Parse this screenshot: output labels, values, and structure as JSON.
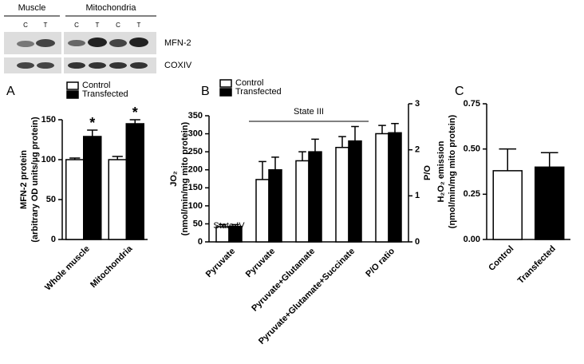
{
  "blot": {
    "groups": [
      "Muscle",
      "Mitochondria"
    ],
    "lanes": [
      "C",
      "T",
      "C",
      "T",
      "C",
      "T"
    ],
    "bands": [
      "MFN-2",
      "COXIV"
    ]
  },
  "chart_data": [
    {
      "type": "bar",
      "panel": "A",
      "ylabel": [
        "MFN-2 protein",
        "(arbitrary OD units/µg protein)"
      ],
      "categories": [
        "Whole muscle",
        "Mitochondria"
      ],
      "series": [
        {
          "name": "Control",
          "color": "#ffffff",
          "values": [
            100,
            100
          ],
          "errors": [
            2,
            4
          ]
        },
        {
          "name": "Transfected",
          "color": "#000000",
          "values": [
            129,
            145
          ],
          "errors": [
            8,
            5
          ],
          "markers": [
            "*",
            "*"
          ]
        }
      ],
      "ylim": [
        0,
        150
      ],
      "yticks": [
        0,
        50,
        100,
        150
      ],
      "legend": "top-left"
    },
    {
      "type": "bar",
      "panel": "B",
      "ylabel": [
        "JO₂",
        "(nmol/min/mg mito protein)"
      ],
      "y2label": "P/O",
      "categories": [
        "Pyruvate",
        "Pyruvate",
        "Pyruvate+Glutamate",
        "Pyruvate+Glutamate+Succinate",
        "P/O ratio"
      ],
      "series": [
        {
          "name": "Control",
          "color": "#ffffff",
          "values": [
            42,
            173,
            225,
            262,
            null
          ],
          "errors": [
            6,
            50,
            25,
            30,
            null
          ]
        },
        {
          "name": "Transfected",
          "color": "#000000",
          "values": [
            43,
            200,
            250,
            280,
            null
          ],
          "errors": [
            5,
            35,
            35,
            40,
            null
          ]
        },
        {
          "name": "Control",
          "color": "#ffffff",
          "axis": "y2",
          "values": [
            null,
            null,
            null,
            null,
            2.35
          ],
          "errors": [
            null,
            null,
            null,
            null,
            0.18
          ]
        },
        {
          "name": "Transfected",
          "color": "#000000",
          "axis": "y2",
          "values": [
            null,
            null,
            null,
            null,
            2.37
          ],
          "errors": [
            null,
            null,
            null,
            null,
            0.2
          ]
        }
      ],
      "ylim": [
        0,
        350
      ],
      "yticks": [
        0,
        50,
        100,
        150,
        200,
        250,
        300,
        350
      ],
      "y2lim": [
        0,
        3
      ],
      "y2ticks": [
        0,
        1,
        2,
        3
      ],
      "annotations": [
        "State IV",
        "State III"
      ],
      "legend": "top-left"
    },
    {
      "type": "bar",
      "panel": "C",
      "ylabel": [
        "H₂O₂ emission",
        "(ηmol/min/mg mito protein)"
      ],
      "categories": [
        "Control",
        "Transfected"
      ],
      "values": [
        0.38,
        0.4
      ],
      "errors": [
        0.12,
        0.08
      ],
      "colors": [
        "#ffffff",
        "#000000"
      ],
      "ylim": [
        0,
        0.75
      ],
      "yticks": [
        {
          "value": 0,
          "label": "0.00"
        },
        {
          "value": 0.25,
          "label": "0.25"
        },
        {
          "value": 0.5,
          "label": "0.50"
        },
        {
          "value": 0.75,
          "label": "0.75"
        }
      ]
    }
  ]
}
